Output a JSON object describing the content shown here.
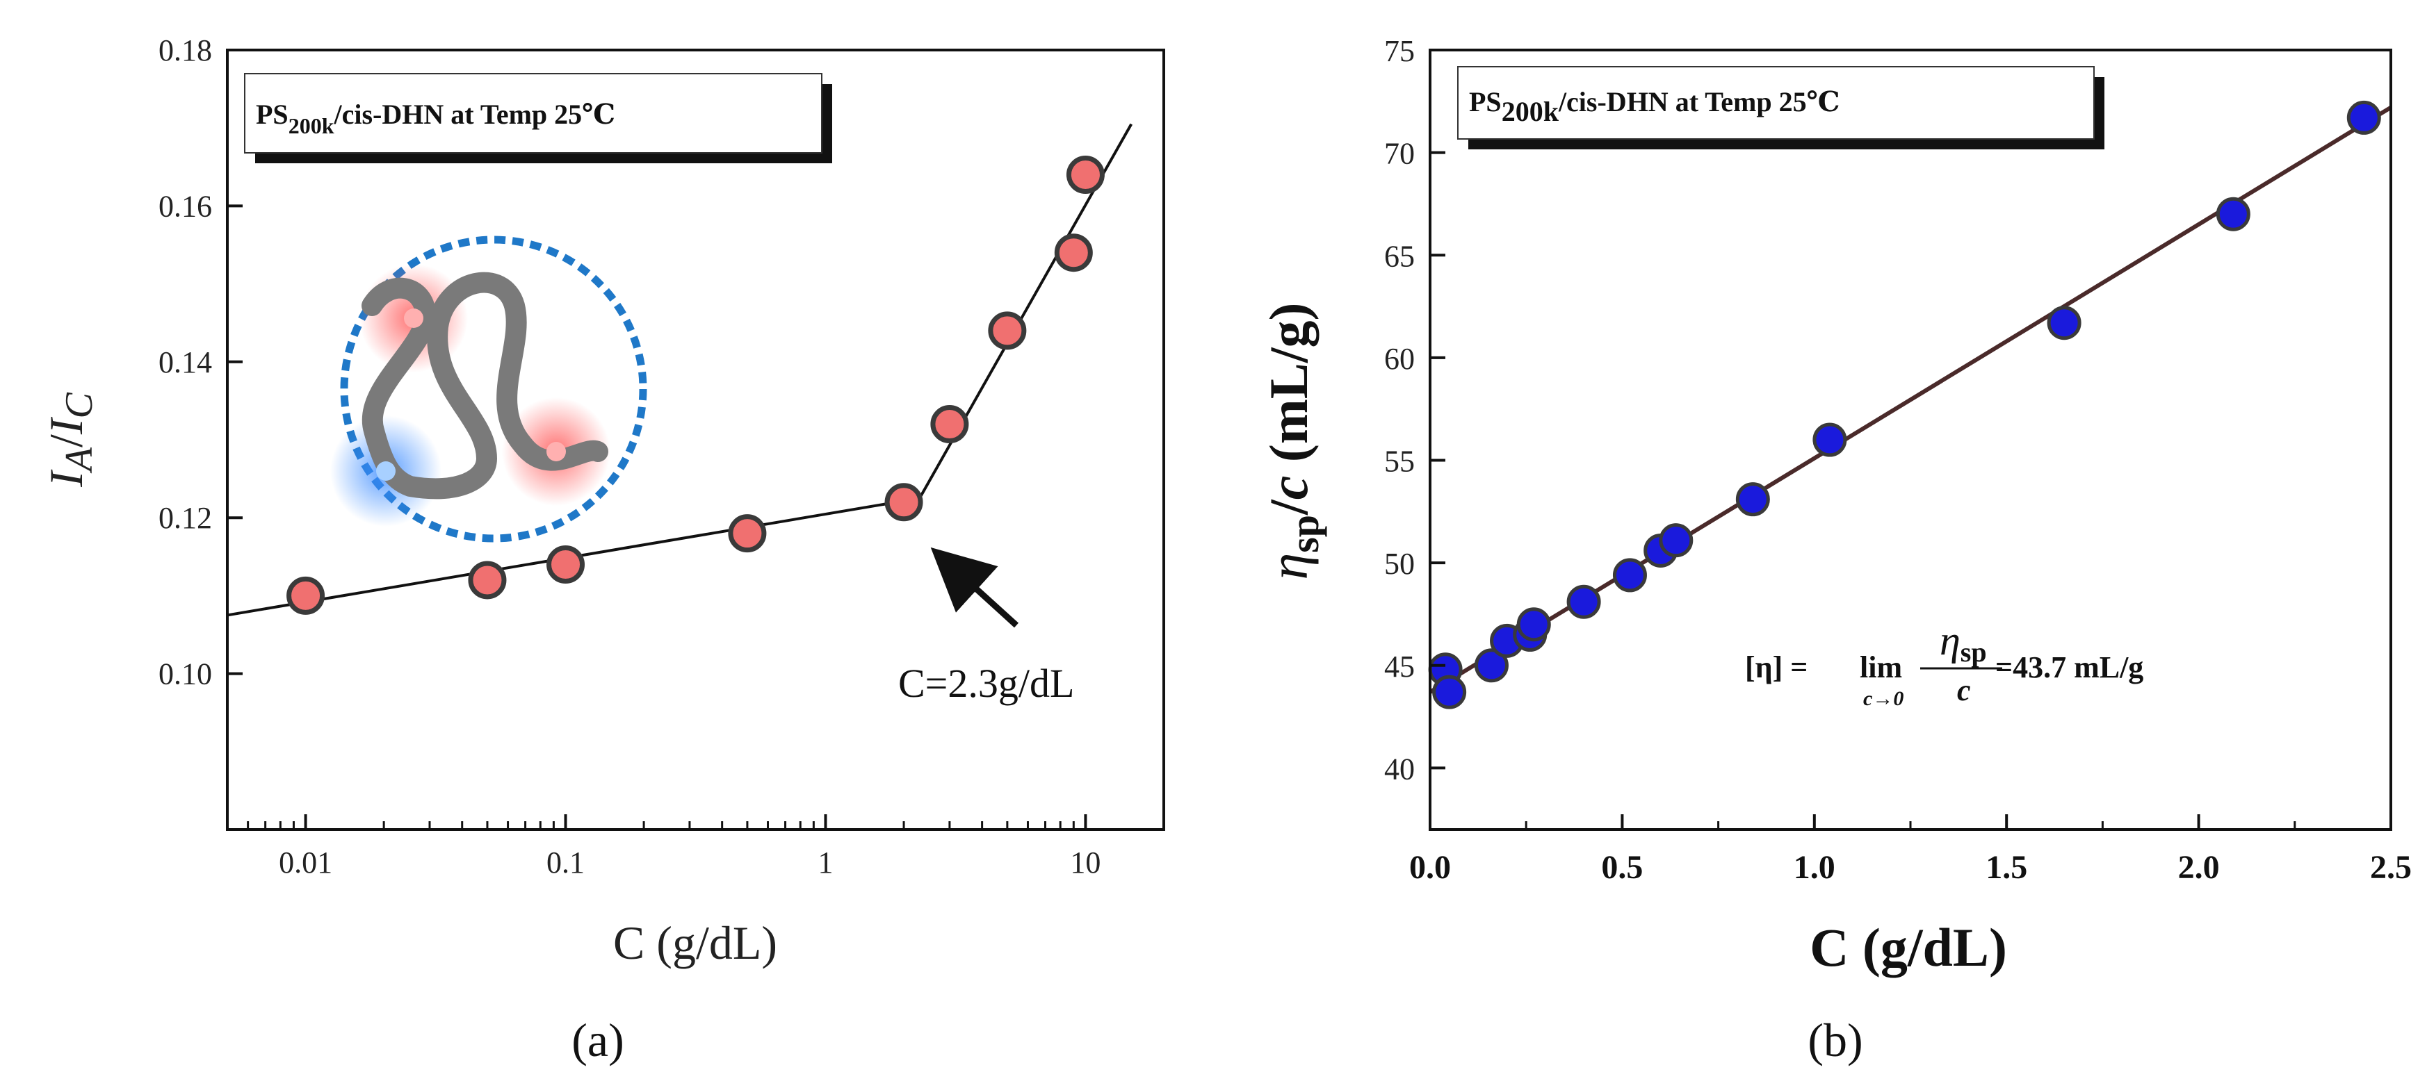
{
  "chart_data": [
    {
      "type": "scatter",
      "panel_label": "(a)",
      "xscale": "log",
      "xlabel": "C (g/dL)",
      "ylabel_main1": "I",
      "ylabel_sub1": "A",
      "ylabel_sep": "/",
      "ylabel_main2": "I",
      "ylabel_sub2": "C",
      "xlim": [
        0.005,
        20
      ],
      "ylim": [
        0.08,
        0.18
      ],
      "xticks": [
        0.01,
        0.1,
        1,
        10
      ],
      "xtick_labels": [
        "0.01",
        "0.1",
        "1",
        "10"
      ],
      "yticks": [
        0.1,
        0.12,
        0.14,
        0.16,
        0.18
      ],
      "ytick_labels": [
        "0.10",
        "0.12",
        "0.14",
        "0.16",
        "0.18"
      ],
      "legend_prefix": "PS",
      "legend_sub": "200k",
      "legend_suffix": "/cis-DHN at Temp 25℃",
      "legend_position": "top-left",
      "annotation": "C=2.3g/dL",
      "marker_color": "#f07070",
      "series": [
        {
          "name": "I_A/I_C",
          "x": [
            0.01,
            0.05,
            0.1,
            0.5,
            2,
            3,
            5,
            9,
            10
          ],
          "y": [
            0.11,
            0.112,
            0.114,
            0.118,
            0.122,
            0.132,
            0.144,
            0.154,
            0.164
          ]
        }
      ],
      "fit_lines": [
        {
          "x": [
            0.005,
            2.3
          ],
          "y": [
            0.1075,
            0.1225
          ]
        },
        {
          "x": [
            2.3,
            15
          ],
          "y": [
            0.1225,
            0.1705
          ]
        }
      ]
    },
    {
      "type": "scatter",
      "panel_label": "(b)",
      "xlabel": "C (g/dL)",
      "ylabel_eta": "η",
      "ylabel_sp": "sp",
      "ylabel_rest": "/",
      "ylabel_c": "c",
      "ylabel_units": " (mL/g)",
      "xlim": [
        0.0,
        2.5
      ],
      "ylim": [
        37,
        75
      ],
      "xticks": [
        0.0,
        0.5,
        1.0,
        1.5,
        2.0,
        2.5
      ],
      "xtick_labels": [
        "0.0",
        "0.5",
        "1.0",
        "1.5",
        "2.0",
        "2.5"
      ],
      "yticks": [
        40,
        45,
        50,
        55,
        60,
        65,
        70,
        75
      ],
      "ytick_labels": [
        "40",
        "45",
        "50",
        "55",
        "60",
        "65",
        "70",
        "75"
      ],
      "legend_prefix": "PS",
      "legend_sub": "200k",
      "legend_suffix": "/cis-DHN at Temp 25℃",
      "legend_position": "top-left",
      "formula_lhs": "[η] =",
      "formula_lim": "lim",
      "formula_limsub": "c→0",
      "formula_num": "η",
      "formula_num_sub": "sp",
      "formula_den": "c",
      "formula_rhs": "=43.7 mL/g",
      "marker_color": "#1a1adc",
      "series": [
        {
          "name": "eta_sp/c",
          "x": [
            0.04,
            0.05,
            0.16,
            0.2,
            0.26,
            0.27,
            0.4,
            0.52,
            0.6,
            0.64,
            0.84,
            1.04,
            1.65,
            2.09,
            2.43
          ],
          "y": [
            44.8,
            43.7,
            45.0,
            46.2,
            46.5,
            47.0,
            48.1,
            49.4,
            50.6,
            51.1,
            53.1,
            56.0,
            61.7,
            67.0,
            71.7
          ]
        }
      ],
      "fit_lines": [
        {
          "x": [
            0.0,
            2.5
          ],
          "y": [
            43.7,
            72.2
          ]
        }
      ]
    }
  ]
}
